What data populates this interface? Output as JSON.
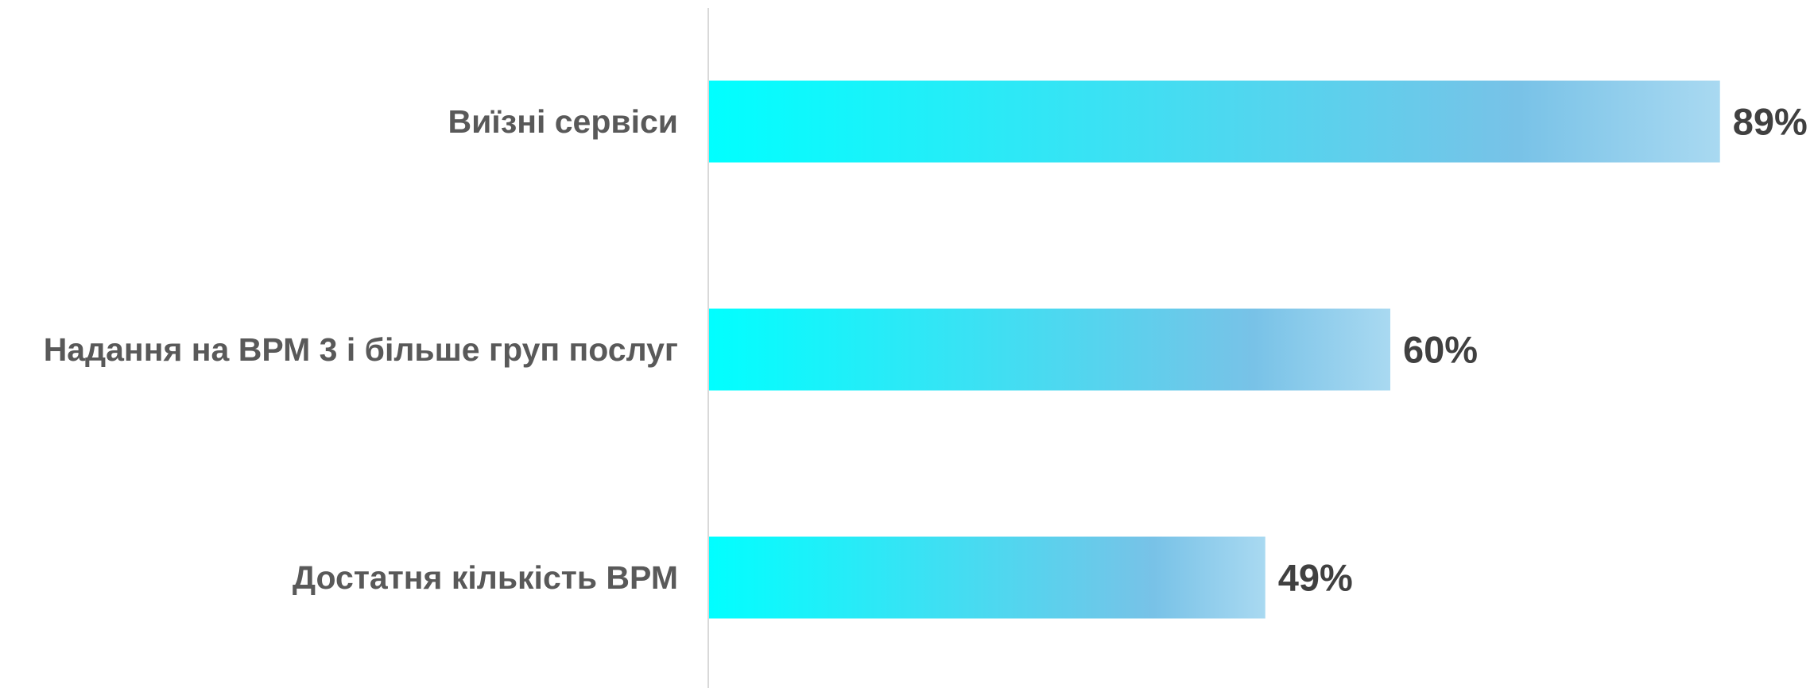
{
  "chart_data": {
    "type": "bar",
    "orientation": "horizontal",
    "categories": [
      "Виїзні сервіси",
      "Надання на ВРМ 3 і більше груп послуг",
      "Достатня кількість ВРМ"
    ],
    "values": [
      89,
      60,
      49
    ],
    "value_labels": [
      "89%",
      "60%",
      "49%"
    ],
    "unit": "%",
    "xlim": [
      0,
      100
    ],
    "grid": false,
    "legend": "none",
    "colors": {
      "bar_start": "#00FFFF",
      "bar_mid": "#78C2E7",
      "bar_end": "#A9D9F1",
      "axis": "#D9D9D9"
    }
  }
}
